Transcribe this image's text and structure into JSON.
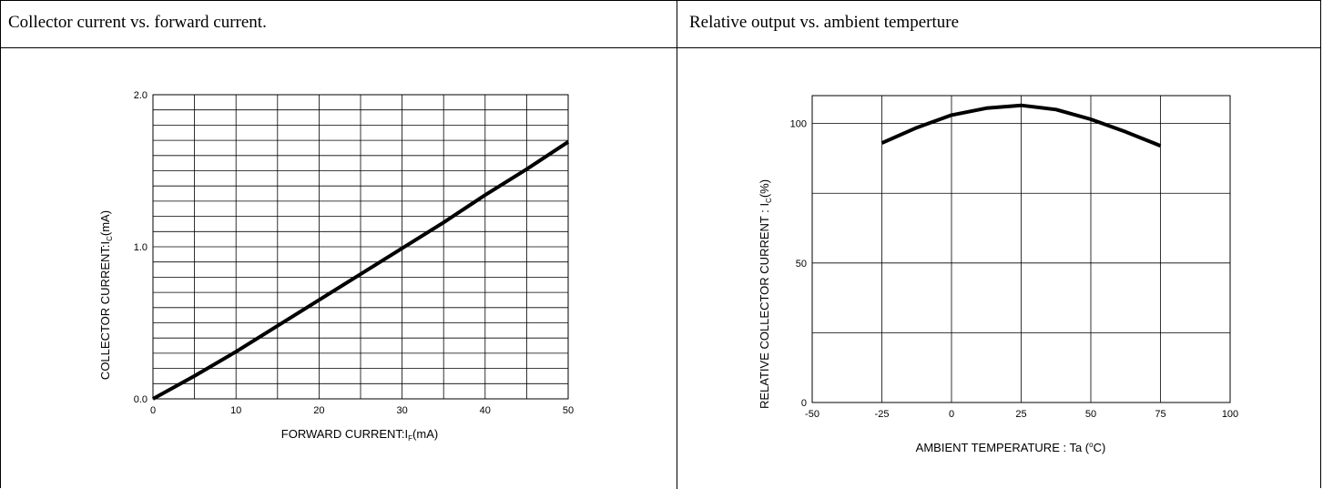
{
  "panels": [
    {
      "caption": "Collector current vs. forward current."
    },
    {
      "caption": "Relative output vs. ambient temperture"
    }
  ],
  "chart_data": [
    {
      "type": "line",
      "xlabel": {
        "main": "FORWARD CURRENT:I",
        "sub": "F",
        "unit": "(mA)"
      },
      "ylabel": {
        "main": "COLLECTOR CURRENT:I",
        "sub": "C",
        "unit": "(mA)"
      },
      "xlim": [
        0,
        50
      ],
      "ylim": [
        0,
        2.0
      ],
      "xticks": [
        0,
        10,
        20,
        30,
        40,
        50
      ],
      "xtick_labels": [
        "0",
        "10",
        "20",
        "30",
        "40",
        "50"
      ],
      "yticks": [
        0,
        1.0,
        2.0
      ],
      "ytick_labels": [
        "0.0",
        "1.0",
        "2.0"
      ],
      "x_grid": [
        0,
        5,
        10,
        15,
        20,
        25,
        30,
        35,
        40,
        45,
        50
      ],
      "y_grid": [
        0,
        0.1,
        0.2,
        0.3,
        0.4,
        0.5,
        0.6,
        0.7,
        0.8,
        0.9,
        1.0,
        1.1,
        1.2,
        1.3,
        1.4,
        1.5,
        1.6,
        1.7,
        1.8,
        1.9,
        2.0
      ],
      "grid": true,
      "series": [
        {
          "x": [
            0,
            5,
            10,
            15,
            20,
            25,
            30,
            35,
            40,
            45,
            50
          ],
          "y": [
            0,
            0.15,
            0.31,
            0.48,
            0.65,
            0.82,
            0.99,
            1.16,
            1.34,
            1.51,
            1.69
          ]
        }
      ]
    },
    {
      "type": "line",
      "xlabel": {
        "main": "AMBIENT TEMPERATURE : Ta (",
        "sup": "o",
        "unit": "C)"
      },
      "ylabel": {
        "main": "RELATIVE COLLECTOR CURRENT : I",
        "sub": "C",
        "unit": "(%)"
      },
      "xlim": [
        -50,
        100
      ],
      "ylim": [
        0,
        110
      ],
      "xticks": [
        -50,
        -25,
        0,
        25,
        50,
        75,
        100
      ],
      "xtick_labels": [
        "-50",
        "-25",
        "0",
        "25",
        "50",
        "75",
        "100"
      ],
      "yticks": [
        0,
        50,
        100
      ],
      "ytick_labels": [
        "0",
        "50",
        "100"
      ],
      "x_grid": [
        -50,
        -25,
        0,
        25,
        50,
        75,
        100
      ],
      "y_grid": [
        0,
        25,
        50,
        75,
        100
      ],
      "grid": true,
      "series": [
        {
          "x": [
            -25,
            -12.5,
            0,
            12.5,
            25,
            37.5,
            50,
            62.5,
            75
          ],
          "y": [
            93,
            98.5,
            103,
            105.5,
            106.5,
            105,
            101.5,
            97,
            92
          ]
        }
      ]
    }
  ]
}
